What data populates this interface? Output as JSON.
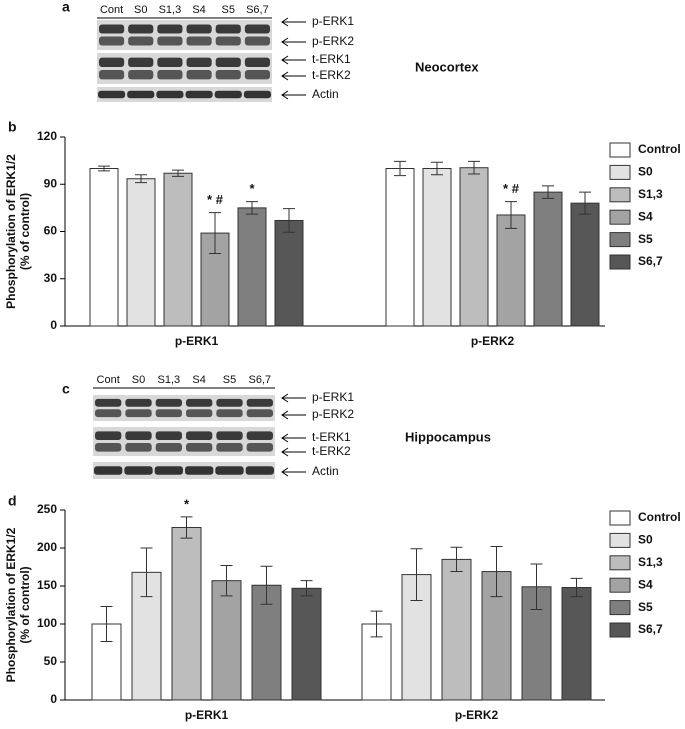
{
  "blots": [
    {
      "panel": "a",
      "lanes": [
        "Cont",
        "S0",
        "S1,3",
        "S4",
        "S5",
        "S6,7"
      ],
      "bands": [
        "p-ERK1",
        "p-ERK2",
        "t-ERK1",
        "t-ERK2",
        "Actin"
      ],
      "region": "Neocortex"
    },
    {
      "panel": "c",
      "lanes": [
        "Cont",
        "S0",
        "S1,3",
        "S4",
        "S5",
        "S6,7"
      ],
      "bands": [
        "p-ERK1",
        "p-ERK2",
        "t-ERK1",
        "t-ERK2",
        "Actin"
      ],
      "region": "Hippocampus"
    }
  ],
  "chart_data": [
    {
      "type": "bar",
      "panel": "b",
      "ylabel": [
        "Phosphorylation of ERK1/2",
        "(% of control)"
      ],
      "categories": [
        "p-ERK1",
        "p-ERK2"
      ],
      "ylim": [
        0,
        120
      ],
      "yticks": [
        0,
        30,
        60,
        90,
        120
      ],
      "series": [
        {
          "name": "Control",
          "color": "#ffffff",
          "values": [
            100,
            100
          ],
          "errors": [
            1.5,
            4.5
          ]
        },
        {
          "name": "S0",
          "color": "#e2e2e2",
          "values": [
            93.5,
            100
          ],
          "errors": [
            2.5,
            4
          ]
        },
        {
          "name": "S1,3",
          "color": "#bdbdbd",
          "values": [
            97,
            100.5
          ],
          "errors": [
            2,
            4
          ]
        },
        {
          "name": "S4",
          "color": "#a3a3a3",
          "values": [
            59,
            70.5
          ],
          "errors": [
            13,
            8.5
          ],
          "markers": [
            "* #",
            "* #"
          ]
        },
        {
          "name": "S5",
          "color": "#7f7f7f",
          "values": [
            75,
            85
          ],
          "errors": [
            4,
            4
          ],
          "markers": [
            "*",
            null
          ]
        },
        {
          "name": "S6,7",
          "color": "#575757",
          "values": [
            67,
            78
          ],
          "errors": [
            7.5,
            7
          ]
        }
      ]
    },
    {
      "type": "bar",
      "panel": "d",
      "ylabel": [
        "Phosphorylation of ERK1/2",
        "(% of control)"
      ],
      "categories": [
        "p-ERK1",
        "p-ERK2"
      ],
      "ylim": [
        0,
        250
      ],
      "yticks": [
        0,
        50,
        100,
        150,
        200,
        250
      ],
      "series": [
        {
          "name": "Control",
          "color": "#ffffff",
          "values": [
            100,
            100
          ],
          "errors": [
            23,
            17
          ]
        },
        {
          "name": "S0",
          "color": "#e2e2e2",
          "values": [
            168,
            165
          ],
          "errors": [
            32,
            34
          ]
        },
        {
          "name": "S1,3",
          "color": "#bdbdbd",
          "values": [
            227,
            185
          ],
          "errors": [
            14,
            16
          ],
          "markers": [
            "*",
            null
          ]
        },
        {
          "name": "S4",
          "color": "#a3a3a3",
          "values": [
            157,
            169
          ],
          "errors": [
            20,
            33
          ]
        },
        {
          "name": "S5",
          "color": "#7f7f7f",
          "values": [
            151,
            149
          ],
          "errors": [
            25,
            30
          ]
        },
        {
          "name": "S6,7",
          "color": "#575757",
          "values": [
            147,
            148
          ],
          "errors": [
            10,
            12
          ]
        }
      ]
    }
  ]
}
